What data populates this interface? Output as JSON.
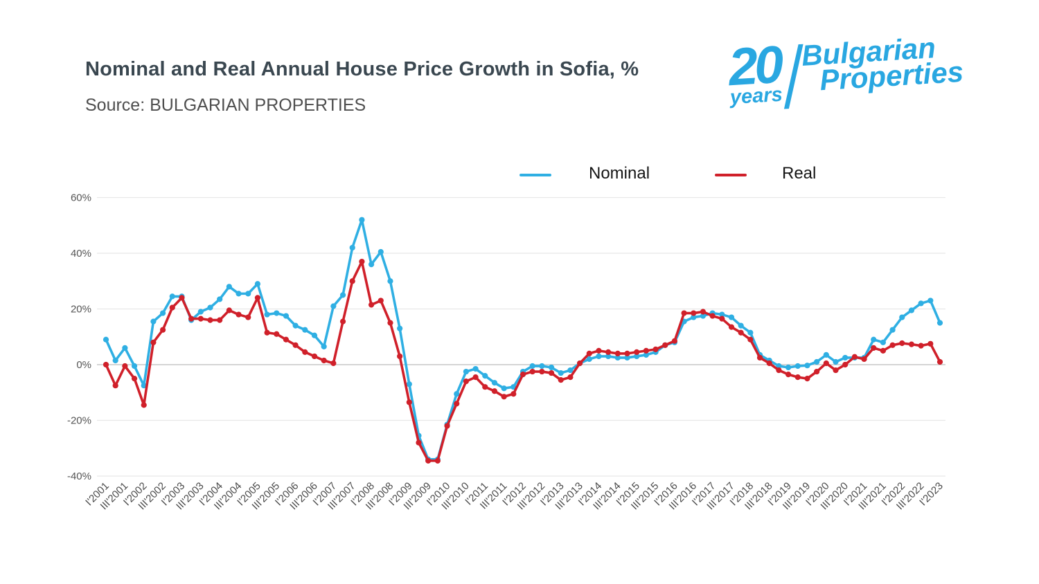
{
  "header": {
    "title": "Nominal and Real Annual House Price Growth in Sofia, %",
    "source": "Source: BULGARIAN PROPERTIES"
  },
  "logo": {
    "number": "20",
    "years": "years",
    "name_line1": "Bulgarian",
    "name_line2": "Properties",
    "color": "#29a7e1"
  },
  "legend": {
    "items": [
      {
        "label": "Nominal",
        "color": "#2fafe3"
      },
      {
        "label": "Real",
        "color": "#d0202a"
      }
    ]
  },
  "chart_data": {
    "type": "line",
    "title": "Nominal and Real Annual House Price Growth in Sofia, %",
    "grid": "horizontal",
    "legend_position": "top",
    "ylim": [
      -40,
      60
    ],
    "y_ticks": [
      {
        "label": "60%",
        "value": 60
      },
      {
        "label": "40%",
        "value": 40
      },
      {
        "label": "20%",
        "value": 20
      },
      {
        "label": "0%",
        "value": 0
      },
      {
        "label": "-20%",
        "value": -20
      },
      {
        "label": "-40%",
        "value": -40
      }
    ],
    "quarters_per_tick": 2,
    "x_tick_labels": [
      "I'2001",
      "III'2001",
      "I'2002",
      "III'2002",
      "I'2003",
      "III'2003",
      "I'2004",
      "III'2004",
      "I'2005",
      "III'2005",
      "I'2006",
      "III'2006",
      "I'2007",
      "III'2007",
      "I'2008",
      "III'2008",
      "I'2009",
      "III'2009",
      "I'2010",
      "III'2010",
      "I'2011",
      "III'2011",
      "I'2012",
      "III'2012",
      "I'2013",
      "III'2013",
      "I'2014",
      "III'2014",
      "I'2015",
      "III'2015",
      "I'2016",
      "III'2016",
      "I'2017",
      "III'2017",
      "I'2018",
      "III'2018",
      "I'2019",
      "III'2019",
      "I'2020",
      "III'2020",
      "I'2021",
      "III'2021",
      "I'2022",
      "III'2022",
      "I'2023"
    ],
    "series": [
      {
        "name": "Nominal",
        "color": "#2fafe3",
        "values": [
          9,
          1.5,
          6,
          -0.5,
          -7.5,
          15.5,
          18.5,
          24.5,
          24.5,
          16,
          19,
          20.5,
          23.5,
          28,
          25.5,
          25.5,
          29,
          18,
          18.5,
          17.5,
          14,
          12.5,
          10.5,
          6.5,
          21,
          25,
          42,
          52,
          36,
          40.5,
          30,
          13,
          -7,
          -25.5,
          -34,
          -34,
          -21.5,
          -10.5,
          -2.5,
          -1.5,
          -4,
          -6.5,
          -8.5,
          -8,
          -2.5,
          -0.5,
          -0.5,
          -1,
          -3,
          -2,
          0.5,
          2,
          3,
          3,
          2.5,
          2.5,
          3,
          3.5,
          4.5,
          7,
          8,
          15.5,
          17,
          17.5,
          18.5,
          18,
          17,
          14,
          11.5,
          3.5,
          1.5,
          -0.5,
          -1,
          -0.5,
          -0.3,
          1,
          3.5,
          1,
          2.5,
          2.5,
          2.5,
          9,
          8,
          12.5,
          17,
          19.5,
          22,
          23,
          15
        ]
      },
      {
        "name": "Real",
        "color": "#d0202a",
        "values": [
          0,
          -7.5,
          -0.5,
          -5,
          -14.5,
          8,
          12.5,
          20.5,
          24,
          16.5,
          16.5,
          16,
          16,
          19.5,
          18,
          17,
          24,
          11.5,
          11,
          9,
          7,
          4.5,
          3,
          1.5,
          0.5,
          15.5,
          30,
          37,
          21.5,
          23,
          15,
          3,
          -13.5,
          -28,
          -34.5,
          -34.5,
          -22,
          -14,
          -6,
          -4.5,
          -8,
          -9.5,
          -11.5,
          -10.5,
          -3.5,
          -2.5,
          -2.5,
          -3,
          -5.5,
          -4.5,
          0.5,
          4,
          5,
          4.5,
          4,
          4,
          4.5,
          5,
          5.5,
          7,
          8.5,
          18.5,
          18.5,
          19,
          17.5,
          16.5,
          13.5,
          11.5,
          9,
          2.5,
          0.5,
          -2,
          -3.5,
          -4.5,
          -5,
          -2.5,
          0.5,
          -2,
          0,
          2.8,
          2,
          6,
          5,
          7,
          7.7,
          7.3,
          6.8,
          7.5,
          1
        ]
      }
    ]
  },
  "layout_colors": {
    "grid_line": "#e8e8e8",
    "zero_line": "#bcbcbc",
    "axis_text": "#4a4a4a"
  }
}
